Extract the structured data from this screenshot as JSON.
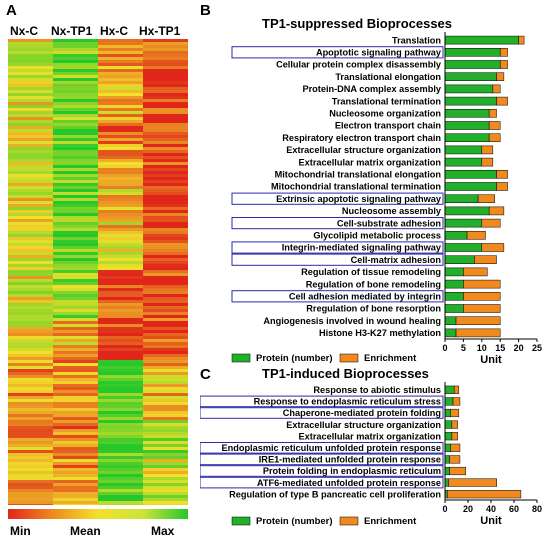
{
  "panels": {
    "a": "A",
    "b": "B",
    "c": "C"
  },
  "heatmap": {
    "columns": [
      "Nx-C",
      "Nx-TP1",
      "Hx-C",
      "Hx-TP1"
    ],
    "scale": {
      "min": "Min",
      "mean": "Mean",
      "max": "Max"
    },
    "colors": {
      "low": "#e0261a",
      "mid": "#f2e12b",
      "high": "#25c82a"
    }
  },
  "colors": {
    "protein": "#22b02a",
    "enrichment": "#f08a1f",
    "highlight_box": "#2a2aa8"
  },
  "chart_data": [
    {
      "type": "bar",
      "orientation": "horizontal",
      "stacked": true,
      "title": "TP1-suppressed Bioprocesses",
      "xlabel": "Unit",
      "xlim": [
        0,
        25
      ],
      "xticks": [
        0,
        5,
        10,
        15,
        20,
        25
      ],
      "categories": [
        "Translation",
        "Apoptotic signaling pathway",
        "Cellular protein complex disassembly",
        "Translational elongation",
        "Protein-DNA complex assembly",
        "Translational termination",
        "Nucleosome organization",
        "Electron transport chain",
        "Respiratory electron transport chain",
        "Extracellular structure organization",
        "Extracellular matrix organization",
        "Mitochondrial translational elongation",
        "Mitochondrial translational termination",
        "Extrinsic apoptotic signaling pathway",
        "Nucleosome assembly",
        "Cell-substrate adhesion",
        "Glycolipid metabolic process",
        "Integrin-mediated signaling pathway",
        "Cell-matrix adhesion",
        "Regulation of tissue remodeling",
        "Regulation of bone remodeling",
        "Cell adhesion mediated by integrin",
        "Rregulation of bone resorption",
        "Angiogenesis involved in wound healing",
        "Histone H3-K27 methylation"
      ],
      "highlighted": [
        1,
        13,
        15,
        17,
        18,
        21
      ],
      "series": [
        {
          "name": "Protein (number)",
          "values": [
            20,
            15,
            15,
            14,
            13,
            14,
            12,
            12,
            12,
            10,
            10,
            14,
            14,
            9,
            12,
            10,
            6,
            10,
            8,
            5,
            5,
            5,
            5,
            3,
            3
          ]
        },
        {
          "name": "Enrichment",
          "values": [
            1.5,
            2,
            2,
            2,
            2,
            3,
            2,
            3,
            3,
            3,
            3,
            3,
            3,
            4.5,
            4,
            5,
            5,
            6,
            6,
            6.5,
            10,
            10,
            10,
            12,
            12
          ]
        }
      ],
      "legend": "bottom"
    },
    {
      "type": "bar",
      "orientation": "horizontal",
      "stacked": true,
      "title": "TP1-induced Bioprocesses",
      "xlabel": "Unit",
      "xlim": [
        0,
        80
      ],
      "xticks": [
        0,
        20,
        40,
        60,
        80
      ],
      "categories": [
        "Response to abiotic stimulus",
        "Response to endoplasmic reticulum stress",
        "Chaperone-mediated protein folding",
        "Extracellular structure organization",
        "Extracellular matrix organization",
        "Endoplasmic reticulum unfolded protein response",
        "IRE1-mediated unfolded protein response",
        "Protein folding in endoplasmic reticulum",
        "ATF6-mediated unfolded protein response",
        "Regulation of type B pancreatic cell proliferation"
      ],
      "highlighted": [
        1,
        2,
        5,
        6,
        7,
        8
      ],
      "series": [
        {
          "name": "Protein (number)",
          "values": [
            8,
            7,
            5,
            6,
            6,
            5,
            4,
            4,
            3,
            2
          ]
        },
        {
          "name": "Enrichment",
          "values": [
            4,
            6,
            7,
            5,
            5,
            8,
            9,
            14,
            42,
            64
          ]
        }
      ],
      "legend": "bottom"
    }
  ]
}
